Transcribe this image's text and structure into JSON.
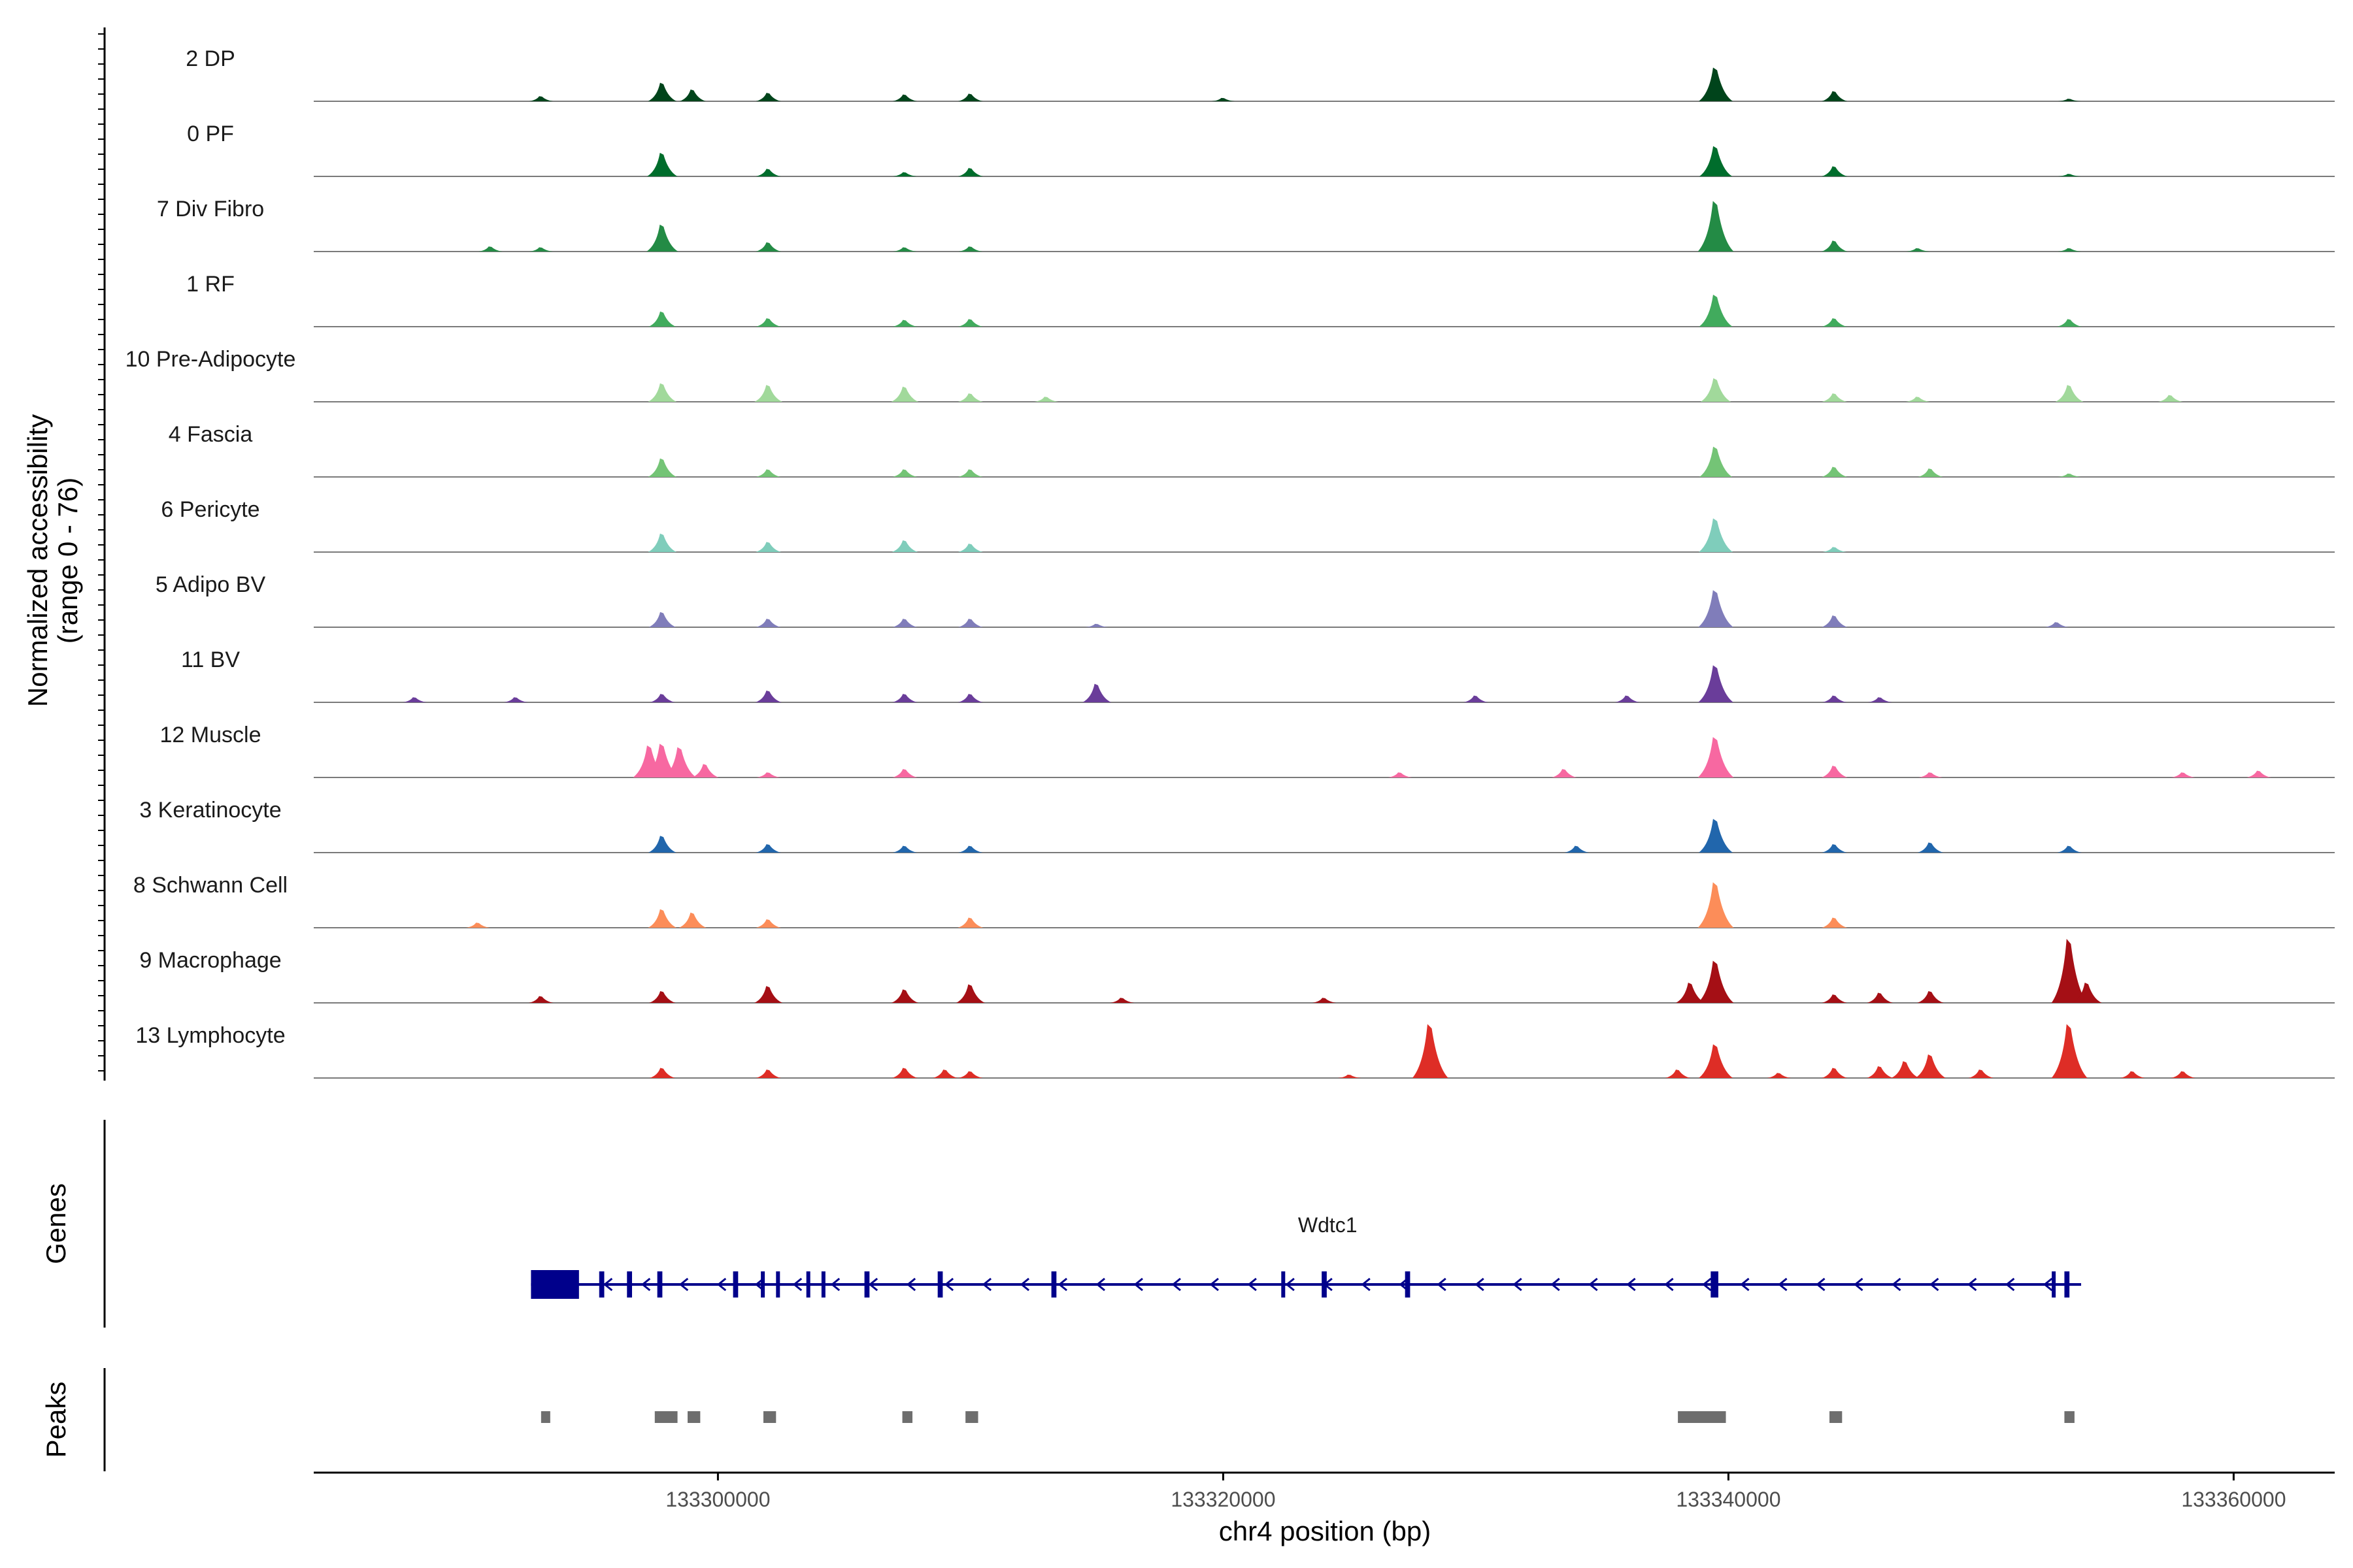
{
  "chart_data": {
    "type": "area",
    "title": "",
    "ylabel_line1": "Normalized accessibility",
    "ylabel_line2": "(range 0 - 76)",
    "ylim": [
      0,
      76
    ],
    "xlabel": "chr4 position (bp)",
    "xlim": [
      133284000,
      133364000
    ],
    "xticks": [
      {
        "value": 133300000,
        "label": "133300000"
      },
      {
        "value": 133320000,
        "label": "133320000"
      },
      {
        "value": 133340000,
        "label": "133340000"
      },
      {
        "value": 133360000,
        "label": "133360000"
      }
    ],
    "tracks": [
      {
        "name": "2 DP",
        "color": "#00441b",
        "peaks": [
          [
            133293000,
            6
          ],
          [
            133297800,
            22
          ],
          [
            133299000,
            14
          ],
          [
            133302000,
            10
          ],
          [
            133307400,
            8
          ],
          [
            133310000,
            9
          ],
          [
            133320000,
            4
          ],
          [
            133339500,
            40
          ],
          [
            133344200,
            12
          ],
          [
            133353500,
            3
          ]
        ]
      },
      {
        "name": "0 PF",
        "color": "#006d2c",
        "peaks": [
          [
            133297800,
            28
          ],
          [
            133302000,
            9
          ],
          [
            133307400,
            5
          ],
          [
            133310000,
            10
          ],
          [
            133339500,
            36
          ],
          [
            133344200,
            12
          ],
          [
            133353500,
            3
          ]
        ]
      },
      {
        "name": "7 Div Fibro",
        "color": "#238b45",
        "peaks": [
          [
            133291000,
            6
          ],
          [
            133293000,
            5
          ],
          [
            133297800,
            32
          ],
          [
            133302000,
            11
          ],
          [
            133307400,
            5
          ],
          [
            133310000,
            6
          ],
          [
            133339500,
            60
          ],
          [
            133344200,
            13
          ],
          [
            133347500,
            4
          ],
          [
            133353500,
            4
          ]
        ]
      },
      {
        "name": "1 RF",
        "color": "#41ab5d",
        "peaks": [
          [
            133297800,
            18
          ],
          [
            133302000,
            10
          ],
          [
            133307400,
            8
          ],
          [
            133310000,
            9
          ],
          [
            133339500,
            38
          ],
          [
            133344200,
            10
          ],
          [
            133353500,
            9
          ]
        ]
      },
      {
        "name": "10 Pre-Adipocyte",
        "color": "#a1d99b",
        "peaks": [
          [
            133297800,
            22
          ],
          [
            133302000,
            20
          ],
          [
            133307400,
            18
          ],
          [
            133310000,
            10
          ],
          [
            133313000,
            6
          ],
          [
            133339500,
            28
          ],
          [
            133344200,
            10
          ],
          [
            133347500,
            6
          ],
          [
            133353500,
            20
          ],
          [
            133357500,
            8
          ]
        ]
      },
      {
        "name": "4 Fascia",
        "color": "#74c476",
        "peaks": [
          [
            133297800,
            22
          ],
          [
            133302000,
            9
          ],
          [
            133307400,
            9
          ],
          [
            133310000,
            9
          ],
          [
            133339500,
            36
          ],
          [
            133344200,
            12
          ],
          [
            133348000,
            10
          ],
          [
            133353500,
            4
          ]
        ]
      },
      {
        "name": "6 Pericyte",
        "color": "#7fcdbb",
        "peaks": [
          [
            133297800,
            22
          ],
          [
            133302000,
            12
          ],
          [
            133307400,
            14
          ],
          [
            133310000,
            10
          ],
          [
            133339500,
            40
          ],
          [
            133344200,
            6
          ]
        ]
      },
      {
        "name": "5 Adipo BV",
        "color": "#807dba",
        "peaks": [
          [
            133297800,
            18
          ],
          [
            133302000,
            10
          ],
          [
            133307400,
            10
          ],
          [
            133310000,
            10
          ],
          [
            133315000,
            4
          ],
          [
            133339500,
            44
          ],
          [
            133344200,
            14
          ],
          [
            133353000,
            6
          ]
        ]
      },
      {
        "name": "11 BV",
        "color": "#6a3d9a",
        "peaks": [
          [
            133288000,
            6
          ],
          [
            133292000,
            6
          ],
          [
            133297800,
            10
          ],
          [
            133302000,
            14
          ],
          [
            133307400,
            10
          ],
          [
            133310000,
            10
          ],
          [
            133315000,
            22
          ],
          [
            133330000,
            8
          ],
          [
            133336000,
            8
          ],
          [
            133339500,
            44
          ],
          [
            133344200,
            8
          ],
          [
            133346000,
            6
          ]
        ]
      },
      {
        "name": "12 Muscle",
        "color": "#f768a1",
        "peaks": [
          [
            133297300,
            38
          ],
          [
            133297800,
            40
          ],
          [
            133298500,
            36
          ],
          [
            133299500,
            16
          ],
          [
            133302000,
            6
          ],
          [
            133307400,
            10
          ],
          [
            133327000,
            6
          ],
          [
            133333500,
            10
          ],
          [
            133339500,
            48
          ],
          [
            133344200,
            14
          ],
          [
            133348000,
            6
          ],
          [
            133358000,
            6
          ],
          [
            133361000,
            8
          ]
        ]
      },
      {
        "name": "3 Keratinocyte",
        "color": "#2166ac",
        "peaks": [
          [
            133297800,
            20
          ],
          [
            133302000,
            10
          ],
          [
            133307400,
            8
          ],
          [
            133310000,
            8
          ],
          [
            133334000,
            8
          ],
          [
            133339500,
            40
          ],
          [
            133344200,
            10
          ],
          [
            133348000,
            12
          ],
          [
            133353500,
            8
          ]
        ]
      },
      {
        "name": "8 Schwann Cell",
        "color": "#fc8d59",
        "peaks": [
          [
            133290500,
            6
          ],
          [
            133297800,
            22
          ],
          [
            133299000,
            18
          ],
          [
            133302000,
            10
          ],
          [
            133310000,
            12
          ],
          [
            133339500,
            54
          ],
          [
            133344200,
            12
          ]
        ]
      },
      {
        "name": "9 Macrophage",
        "color": "#a50f15",
        "peaks": [
          [
            133293000,
            8
          ],
          [
            133297800,
            14
          ],
          [
            133302000,
            20
          ],
          [
            133307400,
            16
          ],
          [
            133310000,
            22
          ],
          [
            133316000,
            6
          ],
          [
            133324000,
            6
          ],
          [
            133338500,
            24
          ],
          [
            133339500,
            50
          ],
          [
            133344200,
            10
          ],
          [
            133346000,
            12
          ],
          [
            133348000,
            14
          ],
          [
            133353500,
            76
          ],
          [
            133354200,
            24
          ]
        ]
      },
      {
        "name": "13 Lymphocyte",
        "color": "#de2d26",
        "peaks": [
          [
            133297800,
            12
          ],
          [
            133302000,
            10
          ],
          [
            133307400,
            12
          ],
          [
            133309000,
            10
          ],
          [
            133310000,
            8
          ],
          [
            133325000,
            4
          ],
          [
            133328200,
            64
          ],
          [
            133338000,
            10
          ],
          [
            133339500,
            40
          ],
          [
            133342000,
            6
          ],
          [
            133344200,
            12
          ],
          [
            133346000,
            14
          ],
          [
            133347000,
            20
          ],
          [
            133348000,
            28
          ],
          [
            133350000,
            10
          ],
          [
            133353500,
            64
          ],
          [
            133356000,
            8
          ],
          [
            133358000,
            8
          ]
        ]
      }
    ],
    "genes_label": "Genes",
    "gene": {
      "name": "Wdtc1",
      "start": 133292600,
      "end": 133353600,
      "strand": "-",
      "color": "#00008b",
      "exons": [
        [
          133292600,
          133294500
        ],
        [
          133295300,
          133295500
        ],
        [
          133296400,
          133296600
        ],
        [
          133297600,
          133297800
        ],
        [
          133300600,
          133300800
        ],
        [
          133301700,
          133301800
        ],
        [
          133302300,
          133302400
        ],
        [
          133303500,
          133303600
        ],
        [
          133304100,
          133304200
        ],
        [
          133305800,
          133306000
        ],
        [
          133308700,
          133308900
        ],
        [
          133313200,
          133313400
        ],
        [
          133322300,
          133322400
        ],
        [
          133323900,
          133324100
        ],
        [
          133327200,
          133327400
        ],
        [
          133339300,
          133339600
        ],
        [
          133352800,
          133352900
        ],
        [
          133353300,
          133353500
        ]
      ]
    },
    "peaks_label": "Peaks",
    "peak_regions": [
      [
        133293000,
        133293300
      ],
      [
        133297500,
        133298400
      ],
      [
        133298800,
        133299300
      ],
      [
        133301800,
        133302300
      ],
      [
        133307300,
        133307700
      ],
      [
        133309800,
        133310300
      ],
      [
        133338000,
        133339900
      ],
      [
        133344000,
        133344500
      ],
      [
        133353300,
        133353700
      ]
    ],
    "peak_color": "#6e6e6e"
  }
}
